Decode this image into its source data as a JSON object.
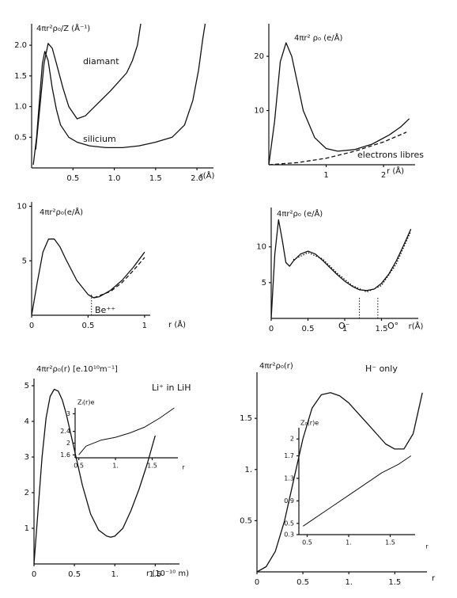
{
  "chart_data": [
    {
      "type": "line",
      "ylabel": "4πr²ρ₀/Z (Å⁻¹)",
      "xlabel": "r(Å)",
      "xlim": [
        0,
        2.2
      ],
      "ylim": [
        0,
        2.35
      ],
      "xticks": [
        0.5,
        {
          "value": 1,
          "label": "1.0"
        },
        1.5,
        {
          "value": 2,
          "label": "2.0"
        }
      ],
      "yticks": [
        0.5,
        {
          "value": 1,
          "label": "1.0"
        },
        1.5,
        {
          "value": 2,
          "label": "2.0"
        }
      ],
      "annotations": [
        "diamant",
        "silicium"
      ],
      "series": [
        {
          "color": "#111",
          "dash": "solid",
          "x": [
            0.02,
            0.06,
            0.1,
            0.13,
            0.16,
            0.2,
            0.25,
            0.3,
            0.35,
            0.45,
            0.55,
            0.7,
            0.9,
            1.1,
            1.3,
            1.5,
            1.7,
            1.85,
            1.95,
            2.02,
            2.07,
            2.1
          ],
          "values": [
            0.05,
            0.5,
            1.2,
            1.7,
            1.9,
            1.75,
            1.3,
            0.95,
            0.7,
            0.5,
            0.42,
            0.36,
            0.33,
            0.33,
            0.36,
            0.42,
            0.5,
            0.7,
            1.1,
            1.6,
            2.1,
            2.35
          ]
        },
        {
          "color": "#111",
          "dash": "solid",
          "x": [
            0.05,
            0.1,
            0.15,
            0.2,
            0.25,
            0.3,
            0.38,
            0.45,
            0.55,
            0.65,
            0.8,
            0.95,
            1.05,
            1.15,
            1.22,
            1.28,
            1.32
          ],
          "values": [
            0.3,
            1.0,
            1.7,
            2.03,
            1.95,
            1.7,
            1.3,
            1.0,
            0.8,
            0.85,
            1.05,
            1.25,
            1.4,
            1.55,
            1.75,
            2.0,
            2.35
          ]
        }
      ]
    },
    {
      "type": "line",
      "ylabel": "4πr² ρ₀ (e/Å)",
      "xlabel": "r (Å)",
      "xlim": [
        0,
        2.55
      ],
      "ylim": [
        0,
        26
      ],
      "xticks": [
        1,
        2
      ],
      "yticks": [
        10,
        20
      ],
      "annotations": [
        "electrons libres"
      ],
      "series": [
        {
          "color": "#111",
          "dash": "solid",
          "x": [
            0,
            0.1,
            0.2,
            0.3,
            0.4,
            0.5,
            0.6,
            0.8,
            1.0,
            1.2,
            1.5,
            1.8,
            2.1,
            2.3,
            2.45
          ],
          "values": [
            0,
            8,
            19,
            22.5,
            20,
            15,
            10,
            5,
            3,
            2.5,
            2.8,
            3.8,
            5.5,
            7,
            8.5
          ]
        },
        {
          "name": "electrons libres",
          "color": "#111",
          "dash": "dashed",
          "x": [
            0,
            0.5,
            1,
            1.5,
            2,
            2.4
          ],
          "values": [
            0,
            0.4,
            1.2,
            2.5,
            4.2,
            6
          ]
        }
      ]
    },
    {
      "type": "line",
      "ylabel": "4πr²ρ₀(e/Å)",
      "xlabel": "r (Å)",
      "xlim": [
        0,
        1.05
      ],
      "ylim": [
        0,
        10.4
      ],
      "xticks": [
        0,
        0.5,
        1
      ],
      "yticks": [
        5,
        10
      ],
      "annotations": [
        "Be⁺⁺"
      ],
      "vlines": [
        0.53
      ],
      "series": [
        {
          "color": "#111",
          "dash": "solid",
          "x": [
            0,
            0.05,
            0.1,
            0.15,
            0.2,
            0.25,
            0.3,
            0.4,
            0.5,
            0.55,
            0.6,
            0.7,
            0.8,
            0.9,
            1.0
          ],
          "values": [
            0,
            3,
            5.8,
            7,
            7,
            6.3,
            5.2,
            3.2,
            1.9,
            1.6,
            1.7,
            2.3,
            3.2,
            4.4,
            5.8
          ]
        },
        {
          "color": "#111",
          "dash": "dashed",
          "x": [
            0.55,
            0.7,
            0.8,
            0.9,
            1.0
          ],
          "values": [
            1.6,
            2.2,
            3.0,
            4.1,
            5.3
          ]
        }
      ]
    },
    {
      "type": "line",
      "ylabel": "4πr²ρ₀ (e/Å)",
      "xlabel": "r(Å)",
      "xlim": [
        0,
        2.0
      ],
      "ylim": [
        0,
        15.5
      ],
      "xticks": [
        0,
        0.5,
        1,
        1.5
      ],
      "yticks": [
        5,
        10
      ],
      "annotations": [
        "O⁻",
        "O°"
      ],
      "vlines": [
        1.2,
        1.45
      ],
      "series": [
        {
          "color": "#111",
          "dash": "solid",
          "x": [
            0,
            0.05,
            0.1,
            0.15,
            0.2,
            0.25,
            0.3,
            0.4,
            0.5,
            0.6,
            0.7,
            0.8,
            0.9,
            1.0,
            1.1,
            1.2,
            1.3,
            1.4,
            1.5,
            1.6,
            1.7,
            1.8,
            1.9
          ],
          "values": [
            0,
            9,
            13.8,
            11,
            7.8,
            7.3,
            8.0,
            9.0,
            9.4,
            9.0,
            8.1,
            7.1,
            6.1,
            5.2,
            4.5,
            4.0,
            3.9,
            4.1,
            4.9,
            6.2,
            8.0,
            10.2,
            12.5
          ]
        },
        {
          "color": "#111",
          "dash": "dotted",
          "x": [
            0.3,
            0.5,
            0.7,
            0.9,
            1.1,
            1.3,
            1.5,
            1.7,
            1.9
          ],
          "values": [
            8.2,
            9.2,
            8.3,
            6.3,
            4.6,
            3.7,
            4.6,
            7.6,
            12.2
          ]
        }
      ]
    },
    {
      "type": "line",
      "ylabel": "4πr²ρ₀(r) [e.10¹⁰m⁻¹]",
      "xlabel": "r (10⁻¹⁰ m)",
      "xlim": [
        0,
        1.8
      ],
      "ylim": [
        0,
        5.2
      ],
      "xticks": [
        0,
        0.5,
        {
          "value": 1,
          "label": "1."
        },
        1.5
      ],
      "yticks": [
        1,
        2,
        3,
        4,
        5
      ],
      "annotations": [
        "Li⁺ in LiH"
      ],
      "series": [
        {
          "color": "#111",
          "dash": "solid",
          "x": [
            0,
            0.05,
            0.1,
            0.15,
            0.2,
            0.25,
            0.3,
            0.35,
            0.4,
            0.5,
            0.6,
            0.7,
            0.8,
            0.9,
            0.95,
            1.0,
            1.1,
            1.2,
            1.3,
            1.4,
            1.5
          ],
          "values": [
            0,
            1.5,
            3,
            4.1,
            4.7,
            4.9,
            4.85,
            4.6,
            4.2,
            3.2,
            2.2,
            1.4,
            0.95,
            0.78,
            0.75,
            0.78,
            1.0,
            1.5,
            2.1,
            2.8,
            3.6
          ]
        }
      ],
      "inset": {
        "type": "line",
        "ylabel": "Zᵢ(r)e",
        "xlabel": "r",
        "xlim": [
          0.45,
          1.85
        ],
        "ylim": [
          1.5,
          3.2
        ],
        "xticks": [
          0.5,
          {
            "value": 1,
            "label": "1."
          },
          1.5
        ],
        "yticks": [
          1.6,
          2,
          2.4,
          3
        ],
        "series": [
          {
            "color": "#111",
            "dash": "solid",
            "x": [
              0.5,
              0.6,
              0.8,
              1.0,
              1.2,
              1.4,
              1.6,
              1.8
            ],
            "values": [
              1.6,
              1.9,
              2.1,
              2.2,
              2.35,
              2.55,
              2.85,
              3.2
            ]
          }
        ]
      }
    },
    {
      "type": "line",
      "ylabel": "4πr²ρ₀(r)",
      "xlabel": "r",
      "xlim": [
        0,
        1.85
      ],
      "ylim": [
        0,
        1.95
      ],
      "xticks": [
        0,
        0.5,
        {
          "value": 1,
          "label": "1."
        },
        1.5
      ],
      "yticks": [
        0.5,
        {
          "value": 1,
          "label": "1."
        },
        1.5
      ],
      "annotations": [
        "H⁻ only"
      ],
      "series": [
        {
          "color": "#111",
          "dash": "solid",
          "x": [
            0,
            0.1,
            0.2,
            0.3,
            0.4,
            0.5,
            0.6,
            0.7,
            0.8,
            0.9,
            1.0,
            1.1,
            1.2,
            1.3,
            1.4,
            1.5,
            1.6,
            1.7,
            1.75,
            1.8
          ],
          "values": [
            0,
            0.05,
            0.2,
            0.5,
            0.9,
            1.3,
            1.6,
            1.73,
            1.75,
            1.72,
            1.65,
            1.55,
            1.45,
            1.35,
            1.25,
            1.2,
            1.2,
            1.35,
            1.55,
            1.75
          ]
        }
      ],
      "inset": {
        "type": "line",
        "ylabel": "Z₀(r)e",
        "xlabel": "r",
        "xlim": [
          0.4,
          1.8
        ],
        "ylim": [
          0.3,
          2.2
        ],
        "xticks": [
          0.5,
          {
            "value": 1,
            "label": "1."
          },
          1.5
        ],
        "yticks": [
          0.3,
          0.5,
          0.9,
          1.3,
          1.7,
          2
        ],
        "series": [
          {
            "color": "#111",
            "dash": "solid",
            "x": [
              0.45,
              0.6,
              0.8,
              1.0,
              1.2,
              1.4,
              1.6,
              1.75
            ],
            "values": [
              0.45,
              0.6,
              0.8,
              1.0,
              1.2,
              1.4,
              1.55,
              1.7
            ]
          }
        ]
      }
    }
  ]
}
